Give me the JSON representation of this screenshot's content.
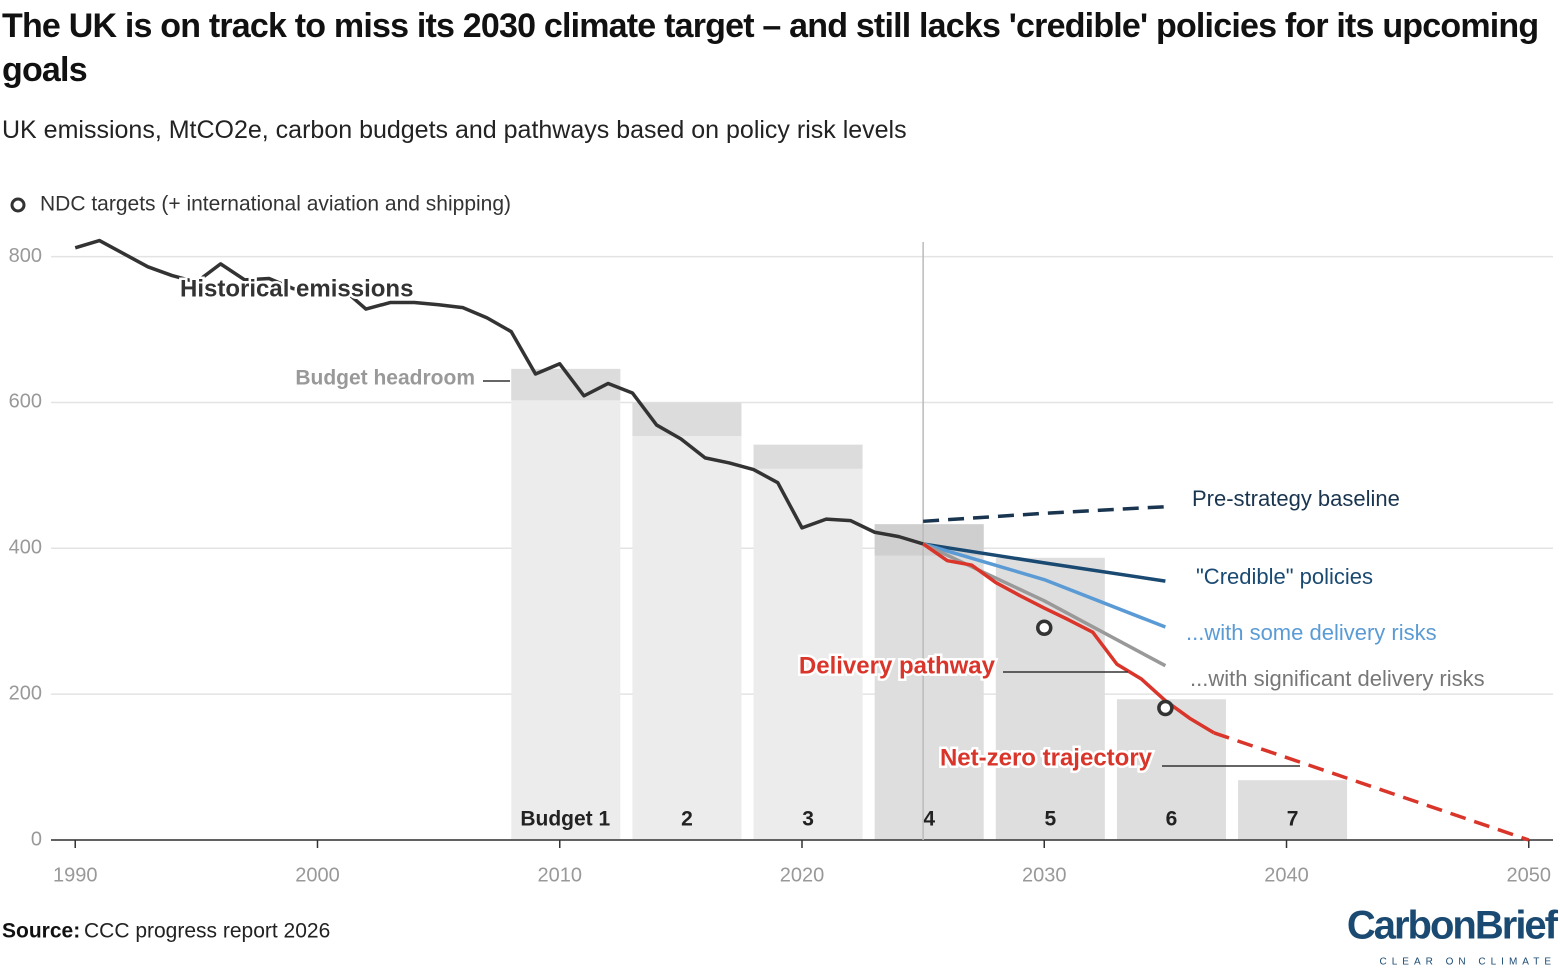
{
  "chart_data": {
    "type": "line",
    "title": "The UK is on track to miss its 2030 climate target – and still lacks 'credible' policies for its upcoming goals",
    "subtitle": "UK emissions, MtCO2e, carbon budgets and pathways based on policy risk levels",
    "source_label": "Source:",
    "source_text": "CCC progress report 2026",
    "logo": "CarbonBrief",
    "logo_tagline": "CLEAR ON CLIMATE",
    "xlim": [
      1989,
      2051
    ],
    "ylim": [
      0,
      820
    ],
    "xticks": [
      1990,
      2000,
      2010,
      2020,
      2030,
      2040,
      2050
    ],
    "yticks": [
      0,
      200,
      400,
      600,
      800
    ],
    "grid": true,
    "budgets": {
      "labels": [
        "Budget 1",
        "2",
        "3",
        "4",
        "5",
        "6",
        "7"
      ],
      "start": [
        2008,
        2013,
        2018,
        2023,
        2028,
        2033,
        2038
      ],
      "end": [
        2012.5,
        2017.5,
        2022.5,
        2027.5,
        2032.5,
        2037.5,
        2042.5
      ],
      "values": [
        646,
        600,
        542,
        433,
        387,
        193,
        82
      ],
      "emissions": [
        603,
        554,
        509,
        390,
        null,
        null,
        null
      ],
      "headroom_label": "Budget headroom"
    },
    "series": [
      {
        "name": "Historical emissions",
        "color": "#333333",
        "dashed": false,
        "x": [
          1990,
          1991,
          1992,
          1993,
          1994,
          1995,
          1996,
          1997,
          1998,
          1999,
          2000,
          2001,
          2002,
          2003,
          2004,
          2005,
          2006,
          2007,
          2008,
          2009,
          2010,
          2011,
          2012,
          2013,
          2014,
          2015,
          2016,
          2017,
          2018,
          2019,
          2020,
          2021,
          2022,
          2023,
          2024,
          2025
        ],
        "values": [
          812,
          822,
          804,
          786,
          774,
          765,
          790,
          768,
          770,
          756,
          752,
          757,
          728,
          737,
          737,
          734,
          730,
          716,
          697,
          639,
          653,
          609,
          626,
          613,
          569,
          550,
          524,
          517,
          508,
          490,
          428,
          440,
          438,
          422,
          416,
          406
        ]
      },
      {
        "name": "Pre-strategy baseline",
        "color": "#1a3550",
        "dashed": true,
        "x": [
          2025,
          2030,
          2035
        ],
        "values": [
          437,
          448,
          457
        ]
      },
      {
        "name": "\"Credible\" policies",
        "color": "#1a4a72",
        "dashed": false,
        "x": [
          2025,
          2030,
          2035
        ],
        "values": [
          406,
          380,
          355
        ]
      },
      {
        "name": "...with some delivery risks",
        "color": "#5b9bd5",
        "dashed": false,
        "x": [
          2025,
          2030,
          2035
        ],
        "values": [
          406,
          357,
          292
        ]
      },
      {
        "name": "...with significant delivery risks",
        "color": "#999999",
        "dashed": false,
        "x": [
          2025,
          2030,
          2035
        ],
        "values": [
          406,
          328,
          239
        ]
      },
      {
        "name": "Delivery pathway",
        "color": "#d9352a",
        "dashed": false,
        "x": [
          2025,
          2026,
          2027,
          2028,
          2029,
          2030,
          2031,
          2032,
          2033,
          2034,
          2035,
          2036,
          2037
        ],
        "values": [
          406,
          383,
          377,
          353,
          335,
          318,
          302,
          285,
          241,
          221,
          191,
          167,
          147
        ]
      },
      {
        "name": "Net-zero trajectory",
        "color": "#d9352a",
        "dashed": true,
        "x": [
          2037,
          2050
        ],
        "values": [
          147,
          0
        ]
      }
    ],
    "ndc": {
      "name": "NDC targets (+ international aviation and shipping)",
      "x": [
        2030,
        2035
      ],
      "values": [
        291,
        181
      ]
    }
  }
}
